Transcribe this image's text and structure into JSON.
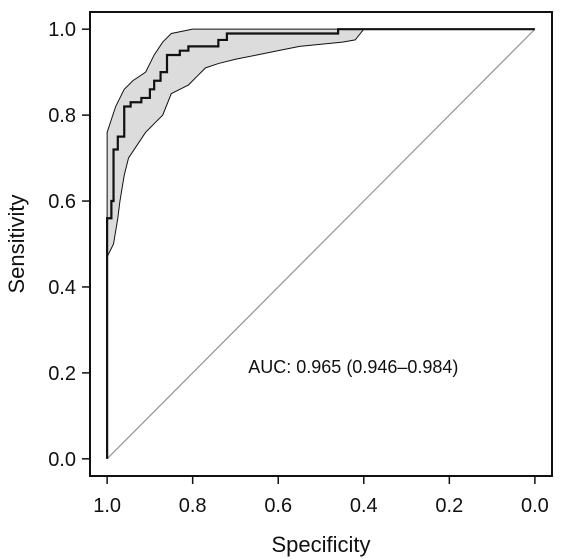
{
  "chart_data": {
    "type": "line",
    "xlabel": "Specificity",
    "ylabel": "Sensitivity",
    "xlim": [
      1.04,
      -0.04
    ],
    "ylim": [
      -0.04,
      1.04
    ],
    "x_reversed": true,
    "x_ticks": [
      "1.0",
      "0.8",
      "0.6",
      "0.4",
      "0.2",
      "0.0"
    ],
    "y_ticks": [
      "0.0",
      "0.2",
      "0.4",
      "0.6",
      "0.8",
      "1.0"
    ],
    "annotation": "AUC: 0.965 (0.946–0.984)",
    "reference_line": {
      "from": [
        1.0,
        0.0
      ],
      "to": [
        0.0,
        1.0
      ],
      "color": "#9a9a9a"
    },
    "series": [
      {
        "role": "roc_curve",
        "style": "step",
        "color": "#111111",
        "points": [
          [
            1.0,
            0.0
          ],
          [
            1.0,
            0.56
          ],
          [
            0.99,
            0.56
          ],
          [
            0.99,
            0.6
          ],
          [
            0.985,
            0.6
          ],
          [
            0.985,
            0.72
          ],
          [
            0.975,
            0.72
          ],
          [
            0.975,
            0.75
          ],
          [
            0.96,
            0.75
          ],
          [
            0.96,
            0.82
          ],
          [
            0.945,
            0.82
          ],
          [
            0.945,
            0.83
          ],
          [
            0.92,
            0.83
          ],
          [
            0.92,
            0.84
          ],
          [
            0.9,
            0.84
          ],
          [
            0.9,
            0.86
          ],
          [
            0.89,
            0.86
          ],
          [
            0.89,
            0.88
          ],
          [
            0.875,
            0.88
          ],
          [
            0.875,
            0.9
          ],
          [
            0.86,
            0.9
          ],
          [
            0.86,
            0.94
          ],
          [
            0.83,
            0.94
          ],
          [
            0.83,
            0.95
          ],
          [
            0.81,
            0.95
          ],
          [
            0.81,
            0.96
          ],
          [
            0.74,
            0.96
          ],
          [
            0.74,
            0.975
          ],
          [
            0.72,
            0.975
          ],
          [
            0.72,
            0.99
          ],
          [
            0.46,
            0.99
          ],
          [
            0.46,
            1.0
          ],
          [
            0.0,
            1.0
          ]
        ]
      }
    ],
    "confidence_band": {
      "color": "#dcdcdc",
      "upper": [
        [
          1.0,
          0.76
        ],
        [
          0.98,
          0.82
        ],
        [
          0.96,
          0.86
        ],
        [
          0.94,
          0.88
        ],
        [
          0.91,
          0.9
        ],
        [
          0.89,
          0.94
        ],
        [
          0.87,
          0.97
        ],
        [
          0.85,
          0.99
        ],
        [
          0.8,
          1.0
        ],
        [
          0.4,
          1.0
        ]
      ],
      "lower": [
        [
          1.0,
          0.47
        ],
        [
          0.985,
          0.5
        ],
        [
          0.975,
          0.56
        ],
        [
          0.97,
          0.6
        ],
        [
          0.96,
          0.66
        ],
        [
          0.95,
          0.7
        ],
        [
          0.93,
          0.73
        ],
        [
          0.91,
          0.76
        ],
        [
          0.89,
          0.78
        ],
        [
          0.87,
          0.8
        ],
        [
          0.85,
          0.85
        ],
        [
          0.83,
          0.86
        ],
        [
          0.81,
          0.87
        ],
        [
          0.79,
          0.89
        ],
        [
          0.77,
          0.91
        ],
        [
          0.74,
          0.92
        ],
        [
          0.7,
          0.93
        ],
        [
          0.65,
          0.94
        ],
        [
          0.6,
          0.95
        ],
        [
          0.55,
          0.96
        ],
        [
          0.5,
          0.965
        ],
        [
          0.45,
          0.97
        ],
        [
          0.42,
          0.975
        ],
        [
          0.4,
          1.0
        ]
      ]
    }
  }
}
